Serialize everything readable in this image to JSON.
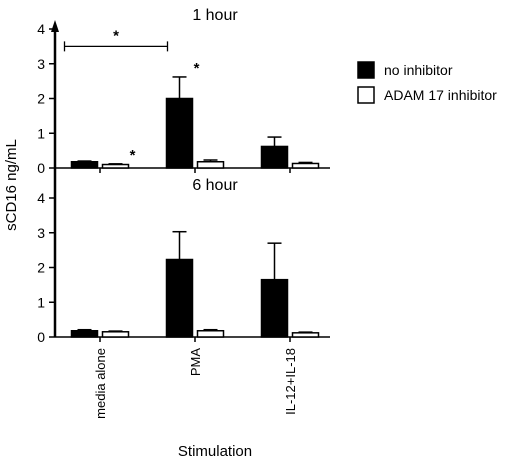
{
  "chart_data": {
    "type": "bar",
    "ylabel": "sCD16 ng/mL",
    "xlabel": "Stimulation",
    "categories": [
      "media alone",
      "PMA",
      "IL-12+IL-18"
    ],
    "ylim": [
      0,
      4
    ],
    "yticks": [
      "0",
      "1",
      "2",
      "3",
      "4"
    ],
    "legend": {
      "placement": "right",
      "entries": [
        {
          "name": "no inhibitor",
          "color": "#000000"
        },
        {
          "name": "ADAM 17 inhibitor",
          "color": "#ffffff"
        }
      ]
    },
    "panels": [
      {
        "title": "1 hour",
        "series": [
          {
            "name": "no inhibitor",
            "values": [
              0.18,
              2.0,
              0.62
            ],
            "errors": [
              0.02,
              0.62,
              0.27
            ]
          },
          {
            "name": "ADAM 17 inhibitor",
            "values": [
              0.1,
              0.18,
              0.13
            ],
            "errors": [
              0.02,
              0.05,
              0.03
            ]
          }
        ],
        "annotations": [
          {
            "text": "*",
            "category": 0,
            "series": 1,
            "type": "marker"
          },
          {
            "text": "*",
            "category": 1,
            "series": 0,
            "type": "marker"
          },
          {
            "text": "*",
            "from_category": 0,
            "to_category": 1,
            "series": 0,
            "type": "bracket",
            "y": 3.5
          }
        ]
      },
      {
        "title": "6 hour",
        "series": [
          {
            "name": "no inhibitor",
            "values": [
              0.18,
              2.23,
              1.65
            ],
            "errors": [
              0.03,
              0.8,
              1.05
            ]
          },
          {
            "name": "ADAM 17 inhibitor",
            "values": [
              0.15,
              0.18,
              0.12
            ],
            "errors": [
              0.02,
              0.03,
              0.02
            ]
          }
        ],
        "annotations": []
      }
    ]
  }
}
